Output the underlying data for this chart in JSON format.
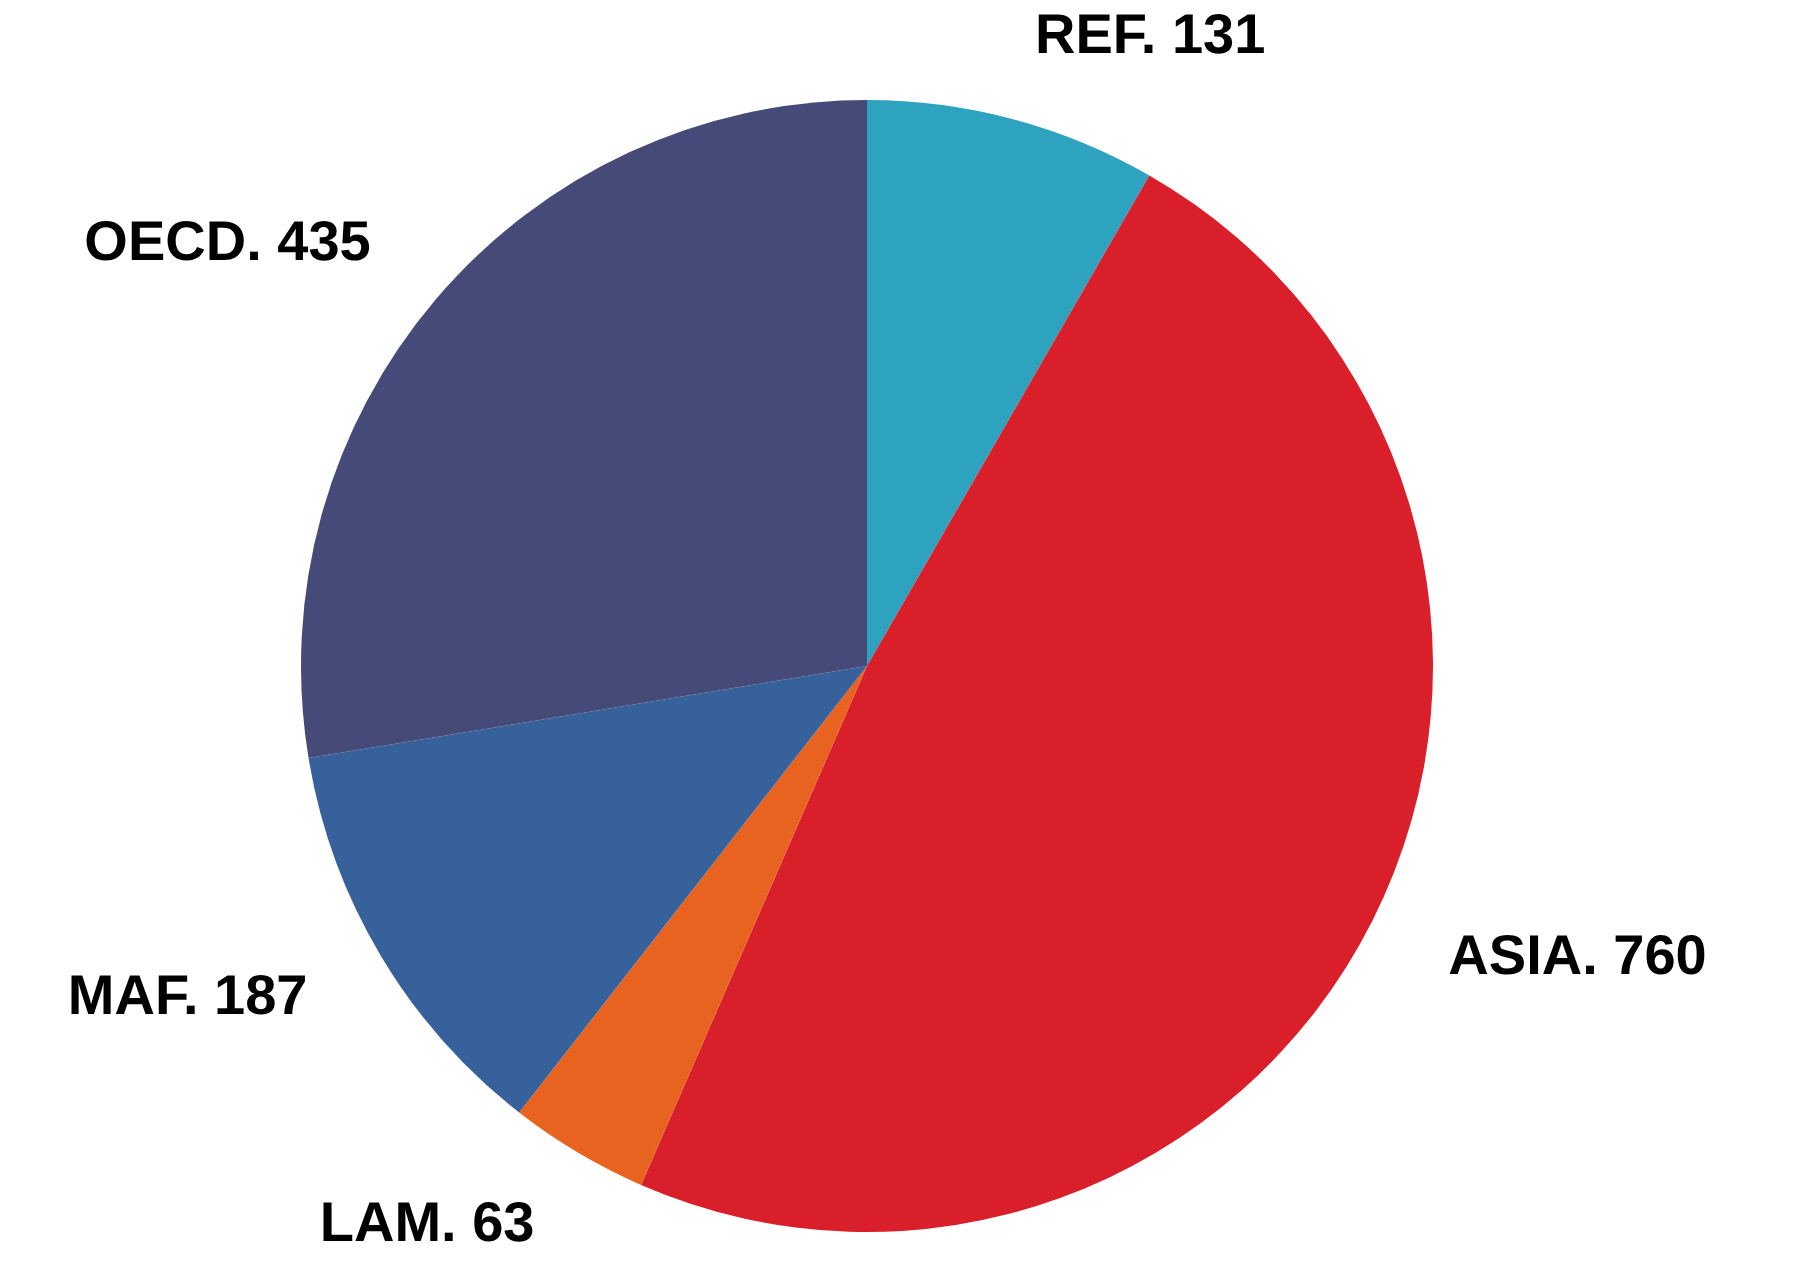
{
  "chart_data": {
    "type": "pie",
    "categories": [
      "REF.",
      "ASIA.",
      "LAM.",
      "MAF.",
      "OECD."
    ],
    "values": [
      131,
      760,
      63,
      187,
      435
    ],
    "colors": [
      "#2ea3c0",
      "#d91f2a",
      "#e8631f",
      "#37619a",
      "#464a78"
    ],
    "data_labels": true,
    "legend": false
  }
}
